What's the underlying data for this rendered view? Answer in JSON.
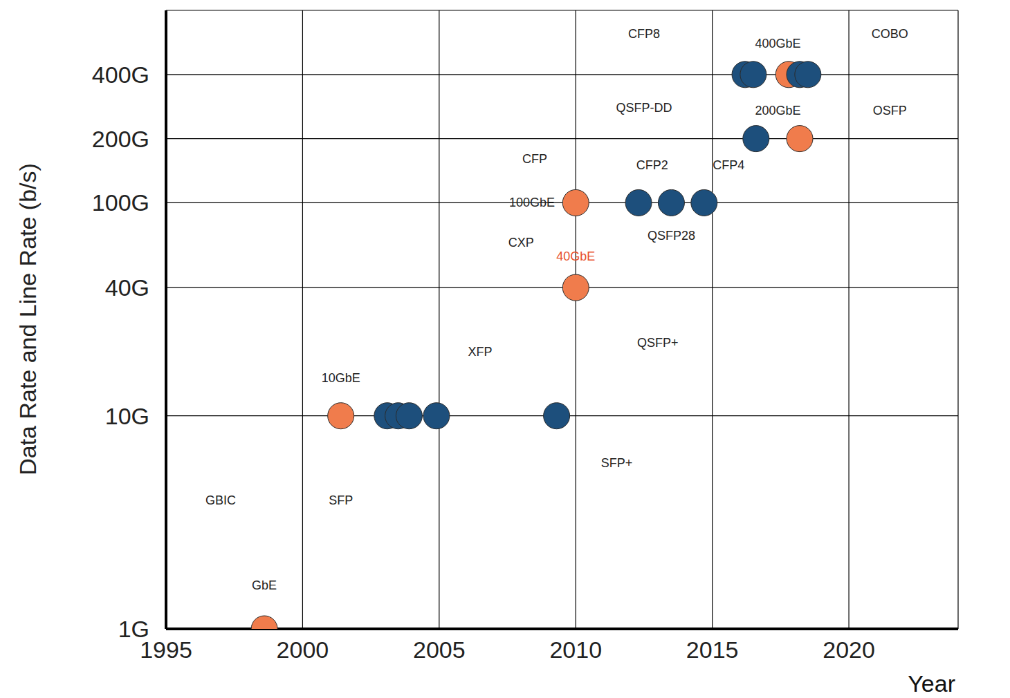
{
  "chart_data": {
    "type": "scatter",
    "x_label": "Year",
    "y_label": "Data Rate and Line Rate (b/s)",
    "log": "y",
    "grid": true,
    "xlim": [
      1995,
      2024
    ],
    "xticks": [
      1995,
      2000,
      2005,
      2010,
      2015,
      2020
    ],
    "ylim": [
      1,
      800
    ],
    "yticks": [
      {
        "value": 1,
        "label": "1G"
      },
      {
        "value": 10,
        "label": "10G"
      },
      {
        "value": 40,
        "label": "40G"
      },
      {
        "value": 100,
        "label": "100G"
      },
      {
        "value": 200,
        "label": "200G"
      },
      {
        "value": 400,
        "label": "400G"
      }
    ],
    "series": [
      {
        "color": "#f07c4c",
        "marker": "circle",
        "x": [
          1998.6,
          2001.4,
          2010,
          2010,
          2018.2,
          2017.8
        ],
        "values": [
          1,
          10,
          40,
          100,
          200,
          400
        ]
      },
      {
        "color": "#1d4f7c",
        "marker": "circle",
        "x": [
          2003.1,
          2003.5,
          2003.9,
          2004.9,
          2009.3,
          2012.3,
          2013.5,
          2014.7,
          2016.6,
          2016.2,
          2016.5,
          2018.2,
          2018.5
        ],
        "values": [
          10,
          10,
          10,
          10,
          10,
          100,
          100,
          100,
          200,
          400,
          400,
          400,
          400
        ]
      }
    ],
    "annotations": [
      {
        "text": "GbE",
        "x": 1998.6,
        "y": 1.6
      },
      {
        "text": "10GbE",
        "x": 2001.4,
        "y": 15
      },
      {
        "text": "40GbE",
        "x": 2010,
        "y": 56,
        "color": "#e8502a"
      },
      {
        "text": "100GbE",
        "x": 2008.4,
        "y": 100
      },
      {
        "text": "200GbE",
        "x": 2017.4,
        "y": 270
      },
      {
        "text": "400GbE",
        "x": 2017.4,
        "y": 560
      },
      {
        "text": "GBIC",
        "x": 1997,
        "y": 4
      },
      {
        "text": "SFP",
        "x": 2001.4,
        "y": 4
      },
      {
        "text": "XFP",
        "x": 2006.5,
        "y": 20
      },
      {
        "text": "SFP+",
        "x": 2011.5,
        "y": 6
      },
      {
        "text": "QSFP+",
        "x": 2013,
        "y": 22
      },
      {
        "text": "CXP",
        "x": 2008,
        "y": 65
      },
      {
        "text": "CFP",
        "x": 2008.5,
        "y": 160
      },
      {
        "text": "CFP2",
        "x": 2012.8,
        "y": 150
      },
      {
        "text": "CFP4",
        "x": 2015.6,
        "y": 150
      },
      {
        "text": "QSFP28",
        "x": 2013.5,
        "y": 70
      },
      {
        "text": "QSFP-DD",
        "x": 2012.5,
        "y": 280
      },
      {
        "text": "CFP8",
        "x": 2012.5,
        "y": 620
      },
      {
        "text": "COBO",
        "x": 2021.5,
        "y": 620
      },
      {
        "text": "OSFP",
        "x": 2021.5,
        "y": 270
      }
    ]
  }
}
